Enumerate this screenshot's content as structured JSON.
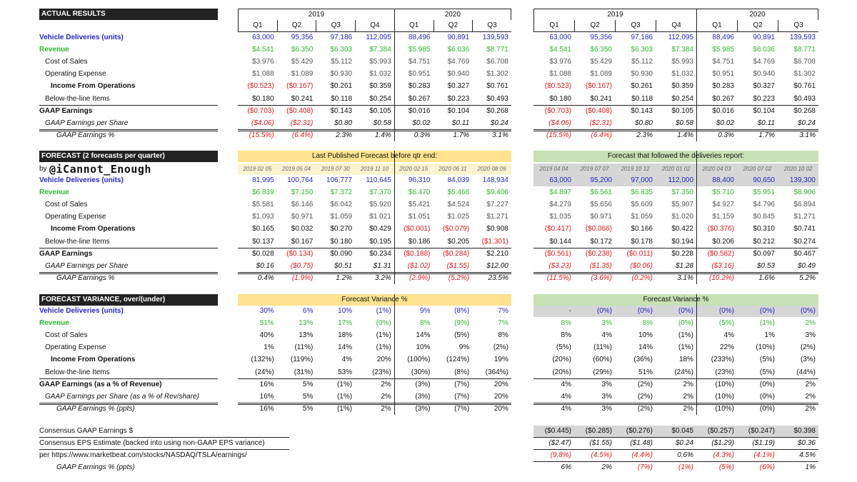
{
  "sections": [
    {
      "title": "ACTUAL RESULTS",
      "years": {
        "left": [
          "2019",
          "2020"
        ],
        "right": [
          "2019",
          "2020"
        ]
      },
      "quarters": {
        "left": [
          "Q1",
          "Q2",
          "Q3",
          "Q4",
          "Q1",
          "Q2",
          "Q3"
        ],
        "right": [
          "Q1",
          "Q2",
          "Q3",
          "Q4",
          "Q1",
          "Q2",
          "Q3"
        ]
      },
      "rows": [
        {
          "label": "Vehicle Deliveries (units)",
          "left": [
            "63,000",
            "95,356",
            "97,186",
            "112,095",
            "88,496",
            "90,891",
            "139,593"
          ],
          "right": [
            "63,000",
            "95,356",
            "97,186",
            "112,095",
            "88,496",
            "90,891",
            "139,593"
          ]
        },
        {
          "label": "Revenue",
          "left": [
            "$4.541",
            "$6.350",
            "$6.303",
            "$7.384",
            "$5.985",
            "$6.036",
            "$8.771"
          ],
          "right": [
            "$4.541",
            "$6.350",
            "$6.303",
            "$7.384",
            "$5.985",
            "$6.036",
            "$8.771"
          ]
        },
        {
          "label": "Cost of Sales",
          "left": [
            "$3.976",
            "$5.429",
            "$5.112",
            "$5.993",
            "$4.751",
            "$4.769",
            "$6.708"
          ],
          "right": [
            "$3.976",
            "$5.429",
            "$5.112",
            "$5.993",
            "$4.751",
            "$4.769",
            "$6.708"
          ]
        },
        {
          "label": "Operating Expense",
          "left": [
            "$1.088",
            "$1.089",
            "$0.930",
            "$1.032",
            "$0.951",
            "$0.940",
            "$1.302"
          ],
          "right": [
            "$1.088",
            "$1.089",
            "$0.930",
            "$1.032",
            "$0.951",
            "$0.940",
            "$1.302"
          ]
        },
        {
          "label": "Income From Operations",
          "left": [
            "($0.523)",
            "($0.167)",
            "$0.261",
            "$0.359",
            "$0.283",
            "$0.327",
            "$0.761"
          ],
          "right": [
            "($0.523)",
            "($0.167)",
            "$0.261",
            "$0.359",
            "$0.283",
            "$0.327",
            "$0.761"
          ]
        },
        {
          "label": "Below-the-line Items",
          "left": [
            "$0.180",
            "$0.241",
            "$0.118",
            "$0.254",
            "$0.267",
            "$0.223",
            "$0.493"
          ],
          "right": [
            "$0.180",
            "$0.241",
            "$0.118",
            "$0.254",
            "$0.267",
            "$0.223",
            "$0.493"
          ]
        },
        {
          "label": "GAAP Earnings",
          "left": [
            "($0.703)",
            "($0.408)",
            "$0.143",
            "$0.105",
            "$0.016",
            "$0.104",
            "$0.268"
          ],
          "right": [
            "($0.703)",
            "($0.408)",
            "$0.143",
            "$0.105",
            "$0.016",
            "$0.104",
            "$0.268"
          ]
        },
        {
          "label": "GAAP Earnings per Share",
          "left": [
            "($4.06)",
            "($2.31)",
            "$0.80",
            "$0.58",
            "$0.02",
            "$0.11",
            "$0.24"
          ],
          "right": [
            "($4.06)",
            "($2.31)",
            "$0.80",
            "$0.58",
            "$0.02",
            "$0.11",
            "$0.24"
          ]
        },
        {
          "label": "GAAP Earnings %",
          "left": [
            "(15.5%)",
            "(6.4%)",
            "2.3%",
            "1.4%",
            "0.3%",
            "1.7%",
            "3.1%"
          ],
          "right": [
            "(15.5%)",
            "(6.4%)",
            "2.3%",
            "1.4%",
            "0.3%",
            "1.7%",
            "3.1%"
          ]
        }
      ]
    },
    {
      "title": "FORECAST (2 forecasts per quarter)",
      "banners": {
        "left": "Last Published Forecast before qtr end:",
        "right": "Forecast that followed the deliveries report:"
      },
      "byline": "by",
      "handle": "@iCannot_Enough",
      "dates": {
        "left": [
          "2019 02 05",
          "2019 05 04",
          "2019 07 30",
          "2019 11 10",
          "2020 02 15",
          "2020 06 11",
          "2020 08 09"
        ],
        "right": [
          "2019 04 04",
          "2019 07 07",
          "2019 10 12",
          "2020 01 02",
          "2020 04 03",
          "2020 07 02",
          "2020 10 02"
        ]
      },
      "rows": [
        {
          "label": "Vehicle Deliveries (units)",
          "left": [
            "81,995",
            "100,764",
            "106,777",
            "110,645",
            "96,310",
            "84,039",
            "148,934"
          ],
          "right": [
            "63,000",
            "95,200",
            "97,000",
            "112,000",
            "88,400",
            "90,650",
            "139,300"
          ]
        },
        {
          "label": "Revenue",
          "left": [
            "$6.839",
            "$7.150",
            "$7.372",
            "$7.370",
            "$6.470",
            "$5.466",
            "$9.406"
          ],
          "right": [
            "$4.897",
            "$6.561",
            "$6.835",
            "$7.350",
            "$5.710",
            "$5.951",
            "$8.906"
          ]
        },
        {
          "label": "Cost of Sales",
          "left": [
            "$5.581",
            "$6.146",
            "$6.042",
            "$5.920",
            "$5.421",
            "$4.524",
            "$7.227"
          ],
          "right": [
            "$4.279",
            "$5.656",
            "$5.609",
            "$5.907",
            "$4.927",
            "$4.796",
            "$6.894"
          ]
        },
        {
          "label": "Operating Expense",
          "left": [
            "$1.093",
            "$0.971",
            "$1.059",
            "$1.021",
            "$1.051",
            "$1.025",
            "$1.271"
          ],
          "right": [
            "$1.035",
            "$0.971",
            "$1.059",
            "$1.020",
            "$1.159",
            "$0.845",
            "$1.271"
          ]
        },
        {
          "label": "Income From Operations",
          "left": [
            "$0.165",
            "$0.032",
            "$0.270",
            "$0.429",
            "($0.001)",
            "($0.079)",
            "$0.908"
          ],
          "right": [
            "($0.417)",
            "($0.066)",
            "$0.166",
            "$0.422",
            "($0.376)",
            "$0.310",
            "$0.741"
          ]
        },
        {
          "label": "Below-the-line Items",
          "left": [
            "$0.137",
            "$0.167",
            "$0.180",
            "$0.195",
            "$0.186",
            "$0.205",
            "($1.301)"
          ],
          "right": [
            "$0.144",
            "$0.172",
            "$0.178",
            "$0.194",
            "$0.206",
            "$0.212",
            "$0.274"
          ]
        },
        {
          "label": "GAAP Earnings",
          "left": [
            "$0.028",
            "($0.134)",
            "$0.090",
            "$0.234",
            "($0.188)",
            "($0.284)",
            "$2.210"
          ],
          "right": [
            "($0.561)",
            "($0.238)",
            "($0.011)",
            "$0.228",
            "($0.582)",
            "$0.097",
            "$0.467"
          ]
        },
        {
          "label": "GAAP Earnings per Share",
          "left": [
            "$0.16",
            "($0.75)",
            "$0.51",
            "$1.31",
            "($1.02)",
            "($1.55)",
            "$12.00"
          ],
          "right": [
            "($3.23)",
            "($1.35)",
            "($0.06)",
            "$1.28",
            "($3.16)",
            "$0.53",
            "$0.49"
          ]
        },
        {
          "label": "GAAP Earnings %",
          "left": [
            "0.4%",
            "(1.9%)",
            "1.2%",
            "3.2%",
            "(2.9%)",
            "(5.2%)",
            "23.5%"
          ],
          "right": [
            "(11.5%)",
            "(3.6%)",
            "(0.2%)",
            "3.1%",
            "(10.2%)",
            "1.6%",
            "5.2%"
          ]
        }
      ]
    },
    {
      "title": "FORECAST VARIANCE, over/(under)",
      "banners": {
        "left": "Forecast Variance %",
        "right": "Forecast Variance %"
      },
      "rows": [
        {
          "label": "Vehicle Deliveries (units)",
          "left": [
            "30%",
            "6%",
            "10%",
            "(1%)",
            "9%",
            "(8%)",
            "7%"
          ],
          "right": [
            "-",
            "(0%)",
            "(0%)",
            "(0%)",
            "(0%)",
            "(0%)",
            "(0%)"
          ]
        },
        {
          "label": "Revenue",
          "left": [
            "51%",
            "13%",
            "17%",
            "(0%)",
            "8%",
            "(9%)",
            "7%"
          ],
          "right": [
            "8%",
            "3%",
            "8%",
            "(0%)",
            "(5%)",
            "(1%)",
            "2%"
          ]
        },
        {
          "label": "Cost of Sales",
          "left": [
            "40%",
            "13%",
            "18%",
            "(1%)",
            "14%",
            "(5%)",
            "8%"
          ],
          "right": [
            "8%",
            "4%",
            "10%",
            "(1%)",
            "4%",
            "1%",
            "3%"
          ]
        },
        {
          "label": "Operating Expense",
          "left": [
            "1%",
            "(11%)",
            "14%",
            "(1%)",
            "10%",
            "9%",
            "(2%)"
          ],
          "right": [
            "(5%)",
            "(11%)",
            "14%",
            "(1%)",
            "22%",
            "(10%)",
            "(2%)"
          ]
        },
        {
          "label": "Income From Operations",
          "left": [
            "(132%)",
            "(119%)",
            "4%",
            "20%",
            "(100%)",
            "(124%)",
            "19%"
          ],
          "right": [
            "(20%)",
            "(60%)",
            "(36%)",
            "18%",
            "(233%)",
            "(5%)",
            "(3%)"
          ]
        },
        {
          "label": "Below-the-line Items",
          "left": [
            "(24%)",
            "(31%)",
            "53%",
            "(23%)",
            "(30%)",
            "(8%)",
            "(364%)"
          ],
          "right": [
            "(20%)",
            "(29%)",
            "51%",
            "(24%)",
            "(23%)",
            "(5%)",
            "(44%)"
          ]
        },
        {
          "label": "GAAP Earnings (as a % of Revenue)",
          "left": [
            "16%",
            "5%",
            "(1%)",
            "2%",
            "(3%)",
            "(7%)",
            "20%"
          ],
          "right": [
            "4%",
            "3%",
            "(2%)",
            "2%",
            "(10%)",
            "(0%)",
            "2%"
          ]
        },
        {
          "label": "GAAP Earnings per Share (as a % of Rev/share)",
          "left": [
            "16%",
            "5%",
            "(1%)",
            "2%",
            "(3%)",
            "(7%)",
            "20%"
          ],
          "right": [
            "4%",
            "3%",
            "(2%)",
            "2%",
            "(10%)",
            "(0%)",
            "2%"
          ]
        },
        {
          "label": "GAAP Earnings % (ppts)",
          "left": [
            "16%",
            "5%",
            "(1%)",
            "2%",
            "(3%)",
            "(7%)",
            "20%"
          ],
          "right": [
            "4%",
            "3%",
            "(2%)",
            "2%",
            "(10%)",
            "(0%)",
            "2%"
          ]
        }
      ]
    },
    {
      "rows": [
        {
          "label": "Consensus GAAP Earnings $",
          "right": [
            "($0.445)",
            "($0.285)",
            "($0.276)",
            "$0.045",
            "($0.257)",
            "($0.247)",
            "$0.398"
          ]
        },
        {
          "label": "Consensus EPS Estimate (backed into using non-GAAP EPS variance)",
          "right": [
            "($2.47)",
            "($1.55)",
            "($1.48)",
            "$0.24",
            "($1.29)",
            "($1.19)",
            "$0.36"
          ]
        },
        {
          "label": "per https://www.marketbeat.com/stocks/NASDAQ/TSLA/earnings/",
          "right": [
            "(9.8%)",
            "(4.5%)",
            "(4.4%)",
            "0.6%",
            "(4.3%)",
            "(4.1%)",
            "4.5%"
          ]
        },
        {
          "label": "GAAP Earnings % (ppts)",
          "right": [
            "6%",
            "2%",
            "(7%)",
            "(1%)",
            "(5%)",
            "(6%)",
            "1%"
          ]
        }
      ]
    }
  ]
}
